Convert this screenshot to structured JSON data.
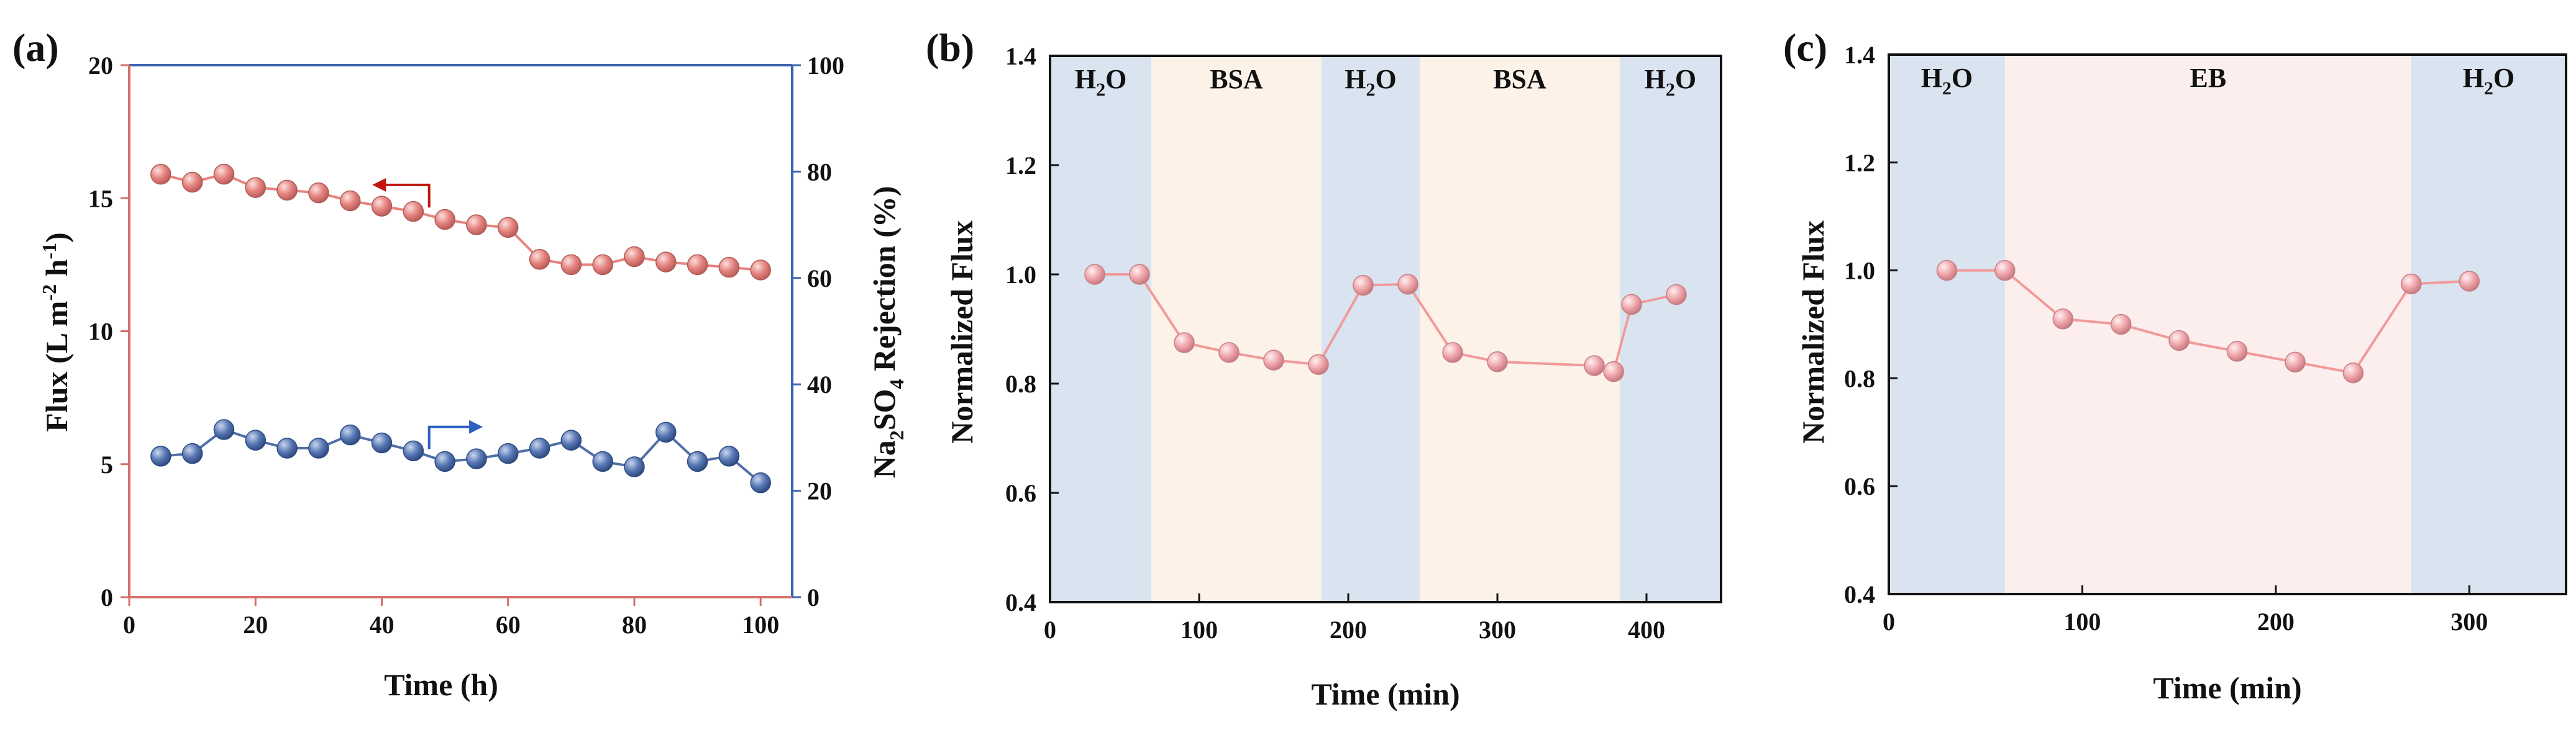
{
  "colors": {
    "flux": "#e5837f",
    "rejection": "#4f6fa8",
    "flux_axis": "#d9706d",
    "rejection_axis": "#3d64b0",
    "norm_line": "#f19a9a",
    "h2o_band": "#d9e4f0",
    "foulant_band": "#fdf2e7",
    "eb_band": "#fdeeee"
  },
  "chart_data": [
    {
      "panel": "(a)",
      "type": "line",
      "xlabel": "Time (h)",
      "ylabel_left": "Flux (L m-2 h-1)",
      "ylabel_right": "Na2SO4 Rejection (%)",
      "xlim": [
        0,
        105
      ],
      "ylim_left": [
        0,
        20
      ],
      "ylim_right": [
        0,
        100
      ],
      "xticks": [
        0,
        20,
        40,
        60,
        80,
        100
      ],
      "yticks_left": [
        0,
        5,
        10,
        15,
        20
      ],
      "yticks_right": [
        0,
        20,
        40,
        60,
        80,
        100
      ],
      "x": [
        5,
        10,
        15,
        20,
        25,
        30,
        35,
        40,
        45,
        50,
        55,
        60,
        65,
        70,
        75,
        80,
        85,
        90,
        95,
        100
      ],
      "series": [
        {
          "name": "Flux",
          "axis": "left",
          "values": [
            15.9,
            15.6,
            15.9,
            15.4,
            15.3,
            15.2,
            14.9,
            14.7,
            14.5,
            14.2,
            14.0,
            13.9,
            12.7,
            12.5,
            12.5,
            12.8,
            12.6,
            12.5,
            12.4,
            12.3
          ]
        },
        {
          "name": "Na2SO4 Rejection",
          "axis": "right",
          "values": [
            26.5,
            27.0,
            31.5,
            29.5,
            28.0,
            28.0,
            30.5,
            29.0,
            27.5,
            25.5,
            26.0,
            27.0,
            28.0,
            29.5,
            25.5,
            24.5,
            31.0,
            25.5,
            26.5,
            21.5
          ]
        }
      ]
    },
    {
      "panel": "(b)",
      "type": "line",
      "xlabel": "Time (min)",
      "ylabel": "Normalized Flux",
      "xlim": [
        0,
        450
      ],
      "ylim": [
        0.4,
        1.4
      ],
      "xticks": [
        0,
        100,
        200,
        300,
        400
      ],
      "yticks": [
        0.4,
        0.6,
        0.8,
        1.0,
        1.2,
        1.4
      ],
      "bands": [
        {
          "label": "H2O",
          "from": 0,
          "to": 68,
          "kind": "water"
        },
        {
          "label": "BSA",
          "from": 68,
          "to": 182,
          "kind": "foulant"
        },
        {
          "label": "H2O",
          "from": 182,
          "to": 248,
          "kind": "water"
        },
        {
          "label": "BSA",
          "from": 248,
          "to": 382,
          "kind": "foulant"
        },
        {
          "label": "H2O",
          "from": 382,
          "to": 450,
          "kind": "water"
        }
      ],
      "x": [
        30,
        60,
        90,
        120,
        150,
        180,
        210,
        240,
        270,
        300,
        365,
        378,
        390,
        420
      ],
      "values": [
        1.0,
        1.0,
        0.875,
        0.857,
        0.843,
        0.835,
        0.98,
        0.982,
        0.857,
        0.84,
        0.833,
        0.822,
        0.945,
        0.963
      ]
    },
    {
      "panel": "(c)",
      "type": "line",
      "xlabel": "Time (min)",
      "ylabel": "Normalized Flux",
      "xlim": [
        0,
        350
      ],
      "ylim": [
        0.4,
        1.4
      ],
      "xticks": [
        0,
        100,
        200,
        300
      ],
      "yticks": [
        0.4,
        0.6,
        0.8,
        1.0,
        1.2,
        1.4
      ],
      "bands": [
        {
          "label": "H2O",
          "from": 0,
          "to": 60,
          "kind": "water"
        },
        {
          "label": "EB",
          "from": 60,
          "to": 270,
          "kind": "eb"
        },
        {
          "label": "H2O",
          "from": 270,
          "to": 350,
          "kind": "water"
        }
      ],
      "x": [
        30,
        60,
        90,
        120,
        150,
        180,
        210,
        240,
        270,
        300
      ],
      "values": [
        1.0,
        1.0,
        0.91,
        0.9,
        0.87,
        0.85,
        0.83,
        0.81,
        0.975,
        0.98
      ]
    }
  ]
}
